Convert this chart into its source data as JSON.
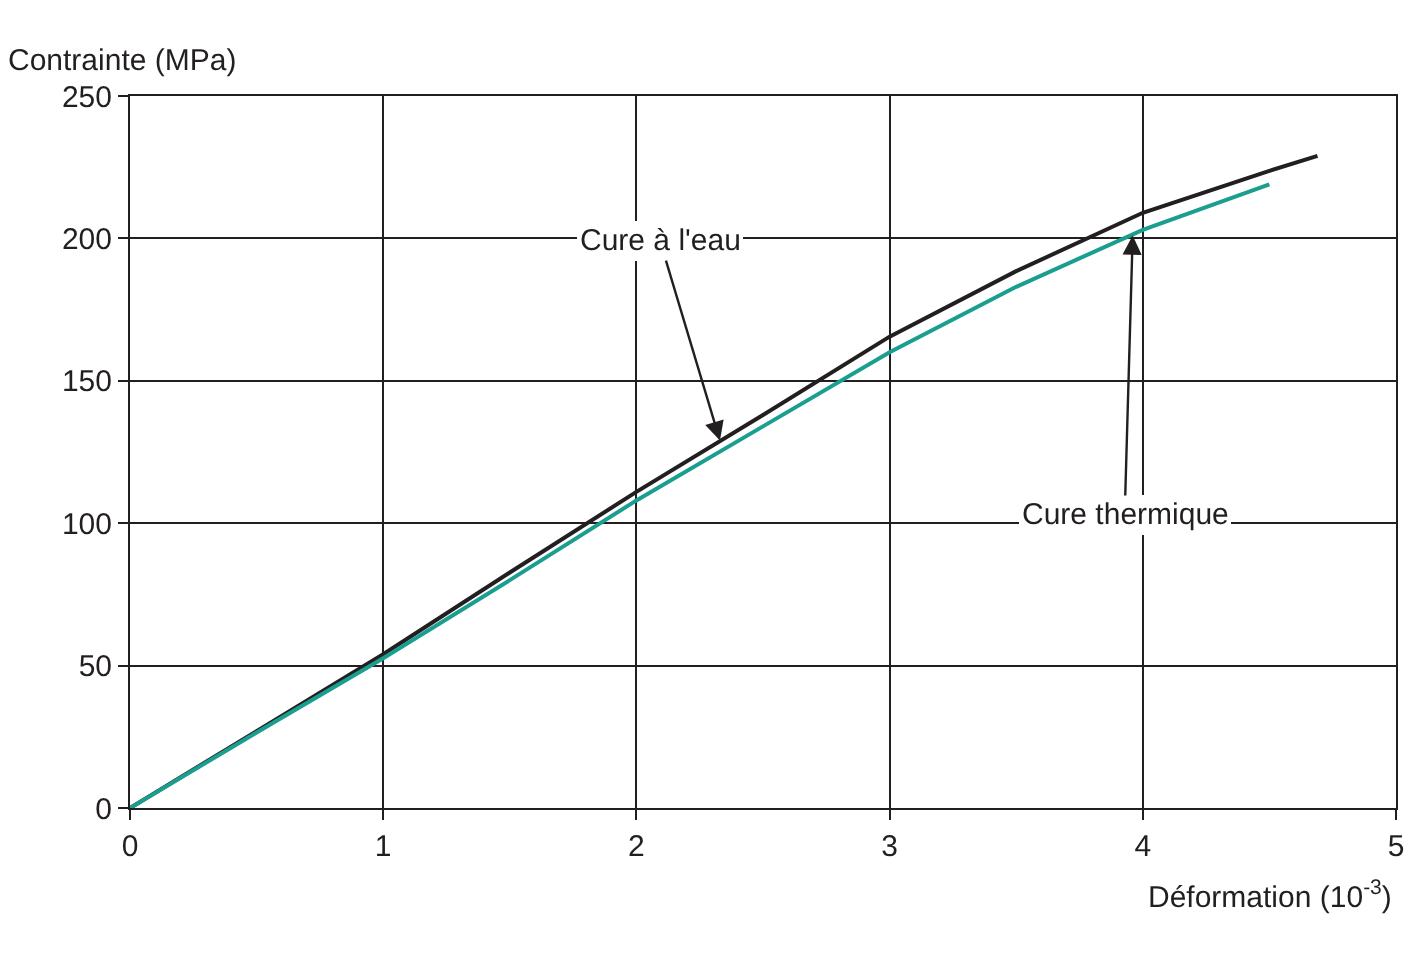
{
  "chart_data": {
    "type": "line",
    "xlabel": "Déformation (10$^{-3}$)",
    "ylabel": "Contrainte (MPa)",
    "x": [
      0,
      0.5,
      1,
      1.5,
      2,
      2.5,
      3,
      3.5,
      4,
      4.5,
      4.69
    ],
    "series": [
      {
        "color": "#231f20",
        "values": [
          0,
          27,
          54,
          82.7,
          111,
          138,
          165.5,
          188.5,
          209,
          223.7,
          229
        ]
      },
      {
        "color": "#1a9e8f",
        "x": [
          0,
          0.5,
          1,
          1.5,
          2,
          2.5,
          3,
          3.5,
          4,
          4.5
        ],
        "values": [
          0,
          26.5,
          52.6,
          80,
          108,
          134,
          160,
          183,
          203,
          219
        ]
      }
    ],
    "annotations": [
      {
        "text": "Cure à l'eau",
        "x": 2.33,
        "y": 129
      },
      {
        "text": "Cure thermique",
        "x": 3.96,
        "y": 201
      }
    ],
    "xlim": [
      0,
      5
    ],
    "xticks": [
      0,
      1,
      2,
      3,
      4,
      5
    ],
    "ylim": [
      0,
      250
    ],
    "yticks": [
      0,
      50,
      100,
      150,
      200,
      250
    ],
    "grid": true,
    "marker": "none",
    "line_style": "solid"
  }
}
